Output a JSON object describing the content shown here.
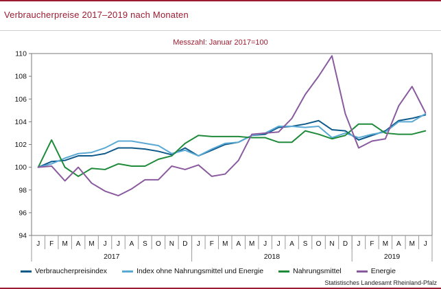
{
  "header": {
    "title": "Verbraucherpreise 2017–2019 nach Monaten"
  },
  "footer": {
    "source": "Statistisches Landesamt Rheinland-Pfalz"
  },
  "chart_data": {
    "type": "line",
    "title": "Verbraucherpreise 2017–2019 nach Monaten",
    "subtitle": "Messzahl: Januar 2017=100",
    "xlabel": "",
    "ylabel": "",
    "ylim": [
      94,
      110
    ],
    "yticks": [
      94,
      96,
      98,
      100,
      102,
      104,
      106,
      108,
      110
    ],
    "grid": false,
    "legend": "bottom",
    "categories": [
      "J",
      "F",
      "M",
      "A",
      "M",
      "J",
      "J",
      "A",
      "S",
      "O",
      "N",
      "D",
      "J",
      "F",
      "M",
      "A",
      "M",
      "J",
      "J",
      "A",
      "S",
      "O",
      "N",
      "D",
      "J",
      "F",
      "M",
      "A",
      "M",
      "J"
    ],
    "year_groups": [
      {
        "label": "2017",
        "start": 0,
        "end": 11
      },
      {
        "label": "2018",
        "start": 12,
        "end": 23
      },
      {
        "label": "2019",
        "start": 24,
        "end": 29
      }
    ],
    "series": [
      {
        "name": "Verbraucherpreisindex",
        "color": "#0d5a8a",
        "values": [
          100.0,
          100.5,
          100.6,
          101.0,
          101.0,
          101.2,
          101.7,
          101.7,
          101.6,
          101.4,
          101.1,
          101.7,
          101.0,
          101.5,
          102.0,
          102.2,
          102.8,
          102.9,
          103.5,
          103.6,
          103.8,
          104.1,
          103.3,
          103.2,
          102.4,
          102.8,
          103.2,
          104.1,
          104.3,
          104.6
        ]
      },
      {
        "name": "Index ohne Nahrungsmittel und Energie",
        "color": "#5aa8d4",
        "values": [
          100.0,
          100.3,
          100.8,
          101.2,
          101.3,
          101.7,
          102.3,
          102.3,
          102.1,
          101.9,
          101.2,
          101.5,
          101.0,
          101.6,
          102.1,
          102.2,
          102.8,
          103.0,
          103.6,
          103.6,
          103.5,
          103.6,
          102.6,
          103.0,
          102.6,
          102.9,
          103.1,
          104.0,
          104.0,
          104.7
        ]
      },
      {
        "name": "Nahrungsmittel",
        "color": "#1e8a3a",
        "values": [
          100.0,
          102.4,
          100.0,
          99.2,
          99.9,
          99.8,
          100.3,
          100.1,
          100.1,
          100.7,
          101.0,
          102.1,
          102.8,
          102.7,
          102.7,
          102.7,
          102.6,
          102.6,
          102.2,
          102.2,
          103.2,
          102.9,
          102.5,
          102.8,
          103.8,
          103.8,
          103.0,
          102.9,
          102.9,
          103.2
        ]
      },
      {
        "name": "Energie",
        "color": "#8a5a9e",
        "values": [
          100.0,
          100.1,
          98.8,
          100.0,
          98.6,
          97.9,
          97.5,
          98.1,
          98.9,
          98.9,
          100.1,
          99.8,
          100.2,
          99.2,
          99.4,
          100.6,
          102.9,
          103.0,
          103.1,
          104.3,
          106.4,
          108.0,
          109.8,
          104.7,
          101.7,
          102.3,
          102.5,
          105.4,
          107.1,
          104.8
        ]
      }
    ]
  }
}
